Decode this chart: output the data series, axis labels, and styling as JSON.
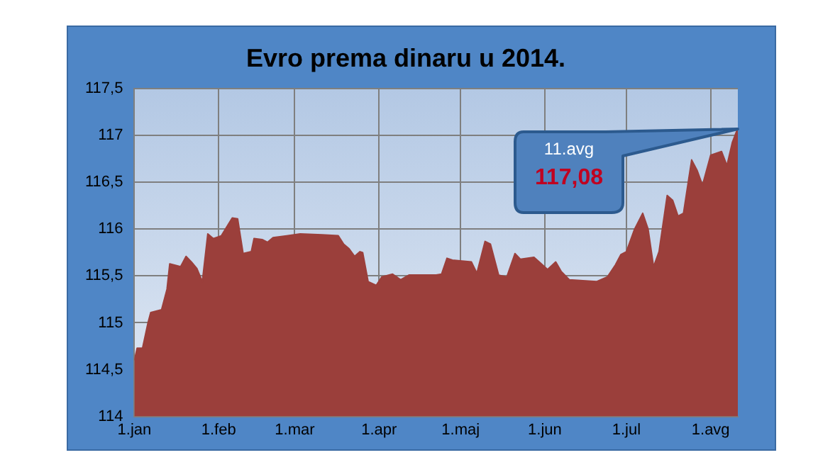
{
  "chart_data": {
    "type": "area",
    "title": "Evro prema dinaru u 2014.",
    "x": [
      "2014-01-01",
      "2014-01-02",
      "2014-01-04",
      "2014-01-06",
      "2014-01-07",
      "2014-01-11",
      "2014-01-13",
      "2014-01-14",
      "2014-01-18",
      "2014-01-20",
      "2014-01-22",
      "2014-01-24",
      "2014-01-26",
      "2014-01-28",
      "2014-01-30",
      "2014-02-02",
      "2014-02-06",
      "2014-02-08",
      "2014-02-10",
      "2014-02-13",
      "2014-02-14",
      "2014-02-17",
      "2014-02-19",
      "2014-02-21",
      "2014-02-26",
      "2014-03-03",
      "2014-03-11",
      "2014-03-17",
      "2014-03-19",
      "2014-03-21",
      "2014-03-23",
      "2014-03-25",
      "2014-03-26",
      "2014-03-28",
      "2014-03-31",
      "2014-04-02",
      "2014-04-06",
      "2014-04-09",
      "2014-04-12",
      "2014-04-22",
      "2014-04-24",
      "2014-04-26",
      "2014-04-28",
      "2014-05-05",
      "2014-05-07",
      "2014-05-10",
      "2014-05-12",
      "2014-05-15",
      "2014-05-18",
      "2014-05-21",
      "2014-05-23",
      "2014-05-28",
      "2014-06-02",
      "2014-06-05",
      "2014-06-07",
      "2014-06-10",
      "2014-06-20",
      "2014-06-24",
      "2014-06-27",
      "2014-06-29",
      "2014-07-01",
      "2014-07-04",
      "2014-07-07",
      "2014-07-09",
      "2014-07-11",
      "2014-07-13",
      "2014-07-16",
      "2014-07-18",
      "2014-07-20",
      "2014-07-22",
      "2014-07-25",
      "2014-07-27",
      "2014-07-29",
      "2014-08-01",
      "2014-08-05",
      "2014-08-07",
      "2014-08-09",
      "2014-08-11"
    ],
    "series": [
      {
        "color": "#9b3f3b",
        "values": [
          114.6,
          114.73,
          114.73,
          115.0,
          115.11,
          115.14,
          115.36,
          115.63,
          115.6,
          115.71,
          115.65,
          115.58,
          115.44,
          115.95,
          115.9,
          115.93,
          116.12,
          116.11,
          115.74,
          115.76,
          115.9,
          115.89,
          115.86,
          115.91,
          115.93,
          115.95,
          115.94,
          115.93,
          115.84,
          115.79,
          115.71,
          115.76,
          115.75,
          115.44,
          115.4,
          115.49,
          115.52,
          115.46,
          115.51,
          115.51,
          115.52,
          115.69,
          115.67,
          115.65,
          115.53,
          115.87,
          115.84,
          115.51,
          115.49,
          115.74,
          115.68,
          115.7,
          115.57,
          115.65,
          115.55,
          115.46,
          115.44,
          115.49,
          115.62,
          115.73,
          115.76,
          116.0,
          116.17,
          116.0,
          115.6,
          115.76,
          116.36,
          116.31,
          116.14,
          116.17,
          116.74,
          116.63,
          116.47,
          116.79,
          116.83,
          116.68,
          116.93,
          117.08
        ]
      }
    ],
    "xlim": [
      "2014-01-01",
      "2014-08-11"
    ],
    "xticks": [
      {
        "value": "2014-01-01",
        "label": "1.jan"
      },
      {
        "value": "2014-02-01",
        "label": "1.feb"
      },
      {
        "value": "2014-03-01",
        "label": "1.mar"
      },
      {
        "value": "2014-04-01",
        "label": "1.apr"
      },
      {
        "value": "2014-05-01",
        "label": "1.maj"
      },
      {
        "value": "2014-06-01",
        "label": "1.jun"
      },
      {
        "value": "2014-07-01",
        "label": "1.jul"
      },
      {
        "value": "2014-08-01",
        "label": "1.avg"
      }
    ],
    "ylim": [
      114,
      117.5
    ],
    "yticks": [
      114,
      {
        "value": 114.5,
        "label": "114,5"
      },
      115,
      {
        "value": 115.5,
        "label": "115,5"
      },
      116,
      {
        "value": 116.5,
        "label": "116,5"
      },
      117,
      {
        "value": 117.5,
        "label": "117,5"
      }
    ],
    "grid": true,
    "annotations": [
      "11.avg",
      "117,08"
    ]
  }
}
